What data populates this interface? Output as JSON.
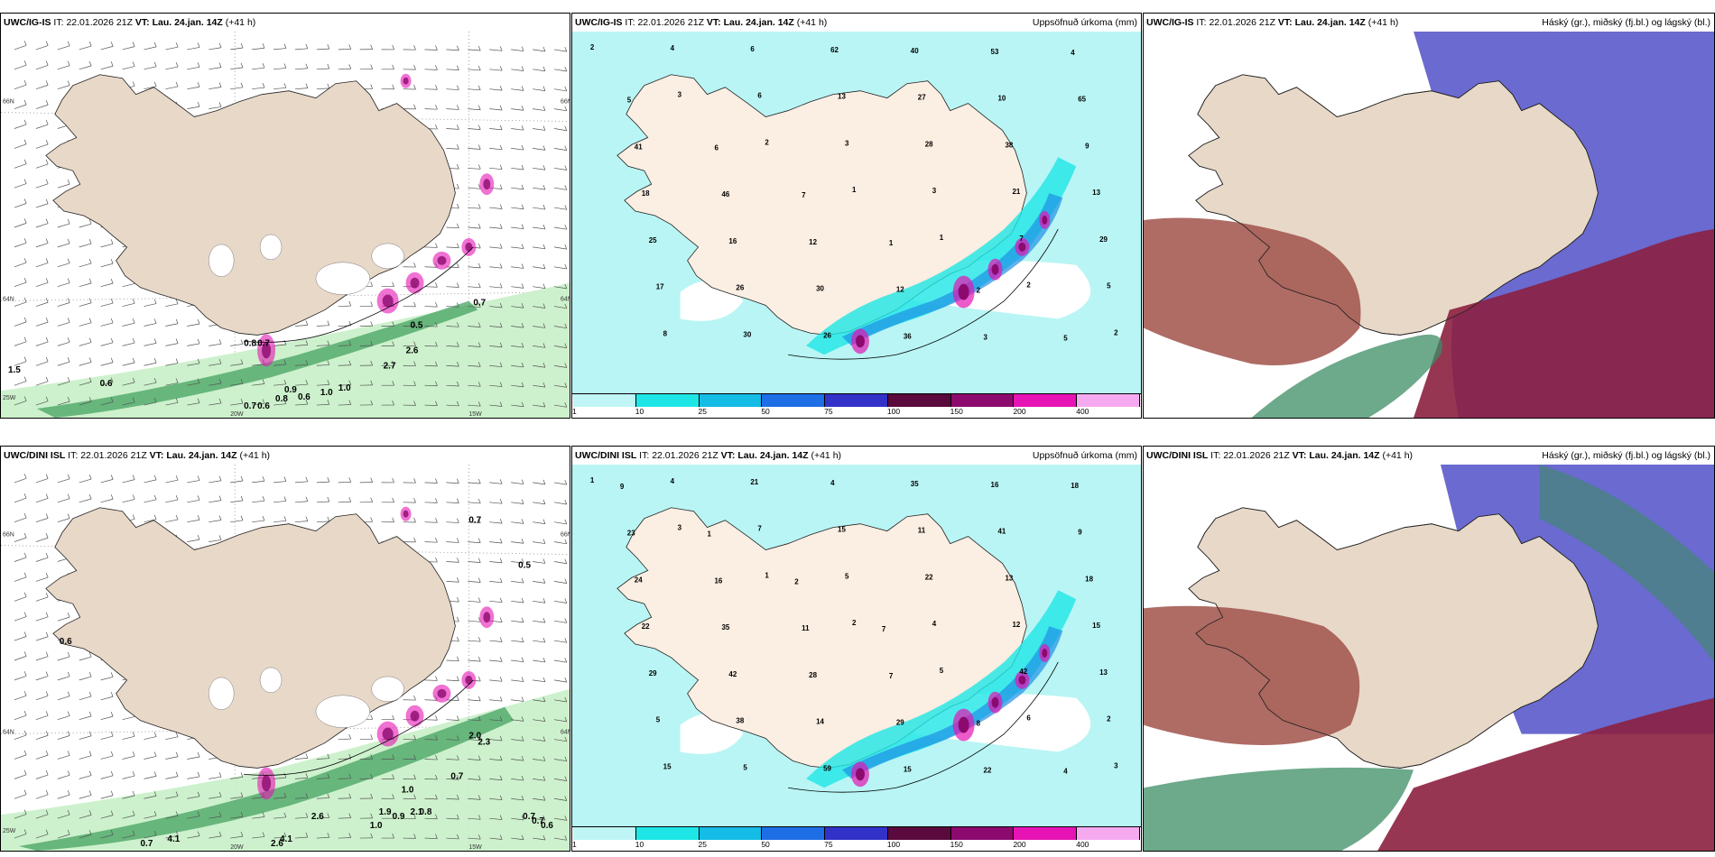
{
  "rows": [
    {
      "model": "UWC/IG-IS",
      "it_label": "IT:",
      "it_value": "22.01.2026 21Z",
      "vt_label": "VT:",
      "vt_value": "Lau. 24.jan. 14Z",
      "lead": "(+41 h)",
      "left_annotations": [
        "0.6",
        "0.5",
        "0.7",
        "0.6",
        "0.7",
        "2.7",
        "2.6",
        "1.0",
        "1.0",
        "0.6",
        "0.8",
        "0.9",
        "1.5",
        "0.8",
        "0.7"
      ],
      "left_axis_labels": [
        "20W",
        "15W",
        "66N",
        "64N",
        "66N",
        "64N",
        "25W"
      ],
      "precip_numbers": [
        "2",
        "3",
        "2",
        "1",
        "1",
        "2",
        "2",
        "4",
        "6",
        "3",
        "3",
        "7",
        "5",
        "8",
        "6",
        "13",
        "28",
        "21",
        "29",
        "17",
        "30",
        "62",
        "27",
        "38",
        "13",
        "25",
        "26",
        "26",
        "40",
        "10",
        "9",
        "18",
        "16",
        "30",
        "36",
        "53",
        "65",
        "41",
        "46",
        "12",
        "12",
        "3",
        "4",
        "5",
        "6",
        "7",
        "1",
        "2",
        "5"
      ]
    },
    {
      "model": "UWC/DINI ISL",
      "it_label": "IT:",
      "it_value": "22.01.2026 21Z",
      "vt_label": "VT:",
      "vt_value": "Lau. 24.jan. 14Z",
      "lead": "(+41 h)",
      "left_annotations": [
        "0.7",
        "0.5",
        "0.6",
        "0.7",
        "0.7",
        "0.6",
        "2.0",
        "2.3",
        "0.7",
        "1.0",
        "0.9",
        "0.8",
        "1.0",
        "1.9",
        "2.1",
        "2.6",
        "4.1",
        "4.1",
        "2.6",
        "0.7"
      ],
      "left_axis_labels": [
        "20W",
        "15W",
        "66N",
        "64N",
        "66N",
        "64N",
        "25W"
      ],
      "precip_numbers": [
        "1",
        "3",
        "1",
        "2",
        "5",
        "6",
        "3",
        "4",
        "7",
        "5",
        "4",
        "42",
        "2",
        "15",
        "21",
        "15",
        "22",
        "12",
        "13",
        "5",
        "5",
        "4",
        "11",
        "13",
        "15",
        "29",
        "38",
        "59",
        "35",
        "41",
        "18",
        "22",
        "42",
        "14",
        "15",
        "16",
        "9",
        "24",
        "35",
        "28",
        "29",
        "22",
        "18",
        "23",
        "16",
        "11",
        "7",
        "8",
        "4",
        "9",
        "1",
        "2",
        "7"
      ]
    }
  ],
  "precip_title": "Uppsöfnuð úrkoma (mm)",
  "cloud_title": "Háský (gr.), miðský (fj.bl.) og lágský (bl.)",
  "legend": {
    "ticks": [
      "1",
      "10",
      "25",
      "50",
      "75",
      "100",
      "150",
      "200",
      "400"
    ],
    "colors": [
      "#bff5f5",
      "#1ee6e6",
      "#14bce6",
      "#1e6ee6",
      "#3232c8",
      "#5a0a3c",
      "#8c0a6e",
      "#e614b4",
      "#f5aaf0"
    ]
  },
  "colors": {
    "land": "#e8d8c8",
    "precip_land": "#fbeee2",
    "sea_wind": "#ffffff",
    "precip_light": "#b9f5f5",
    "cyan": "#1ee6e6",
    "blue": "#1e90e6",
    "purple": "#8c0a6e",
    "magenta": "#e614b4",
    "green_light": "#c8f0c8",
    "green_dark": "#1a5a2a",
    "cloud_high": "#e8d8c8",
    "cloud_mid": "#5050c8",
    "cloud_low_red": "#8c2040",
    "cloud_low_brown": "#a0524a",
    "cloud_green": "#3c8c64"
  }
}
